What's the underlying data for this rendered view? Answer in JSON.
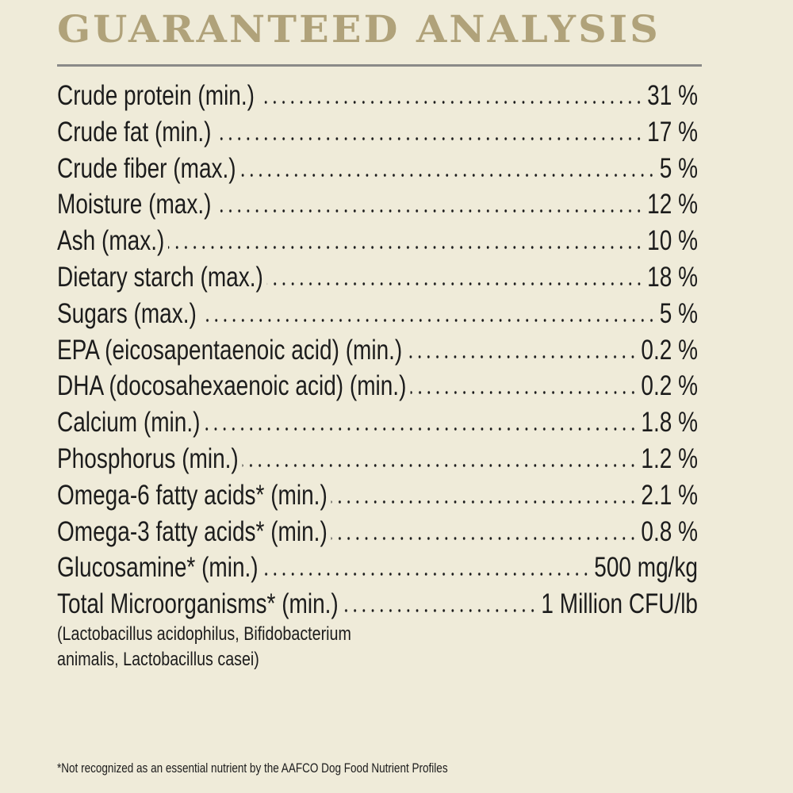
{
  "title": "GUARANTEED ANALYSIS",
  "colors": {
    "title": "#b0a27a",
    "background": "#efebd9",
    "rule": "#8a8a88",
    "text": "#1c1c1c"
  },
  "rows": [
    {
      "label": "Crude protein (min.)",
      "value": "31 %"
    },
    {
      "label": "Crude fat (min.)",
      "value": "17 %"
    },
    {
      "label": "Crude fiber (max.)",
      "value": "5 %"
    },
    {
      "label": "Moisture (max.)",
      "value": "12 %"
    },
    {
      "label": "Ash (max.)",
      "value": "10 %"
    },
    {
      "label": "Dietary starch (max.)",
      "value": "18 %"
    },
    {
      "label": "Sugars (max.)",
      "value": "5 %"
    },
    {
      "label": "EPA (eicosapentaenoic acid) (min.)",
      "value": "0.2 %"
    },
    {
      "label": "DHA (docosahexaenoic acid) (min.)",
      "value": "0.2 %"
    },
    {
      "label": "Calcium (min.)",
      "value": "1.8 %"
    },
    {
      "label": "Phosphorus (min.)",
      "value": "1.2 %"
    },
    {
      "label": "Omega-6 fatty acids* (min.)",
      "value": "2.1 %"
    },
    {
      "label": "Omega-3 fatty acids* (min.)",
      "value": "0.8 %"
    },
    {
      "label": "Glucosamine* (min.)",
      "value": "500 mg/kg"
    },
    {
      "label": "Total Microorganisms* (min.)",
      "value": "1 Million CFU/lb"
    }
  ],
  "microorganisms_note": [
    "(Lactobacillus acidophilus, Bifidobacterium",
    "animalis, Lactobacillus casei)"
  ],
  "footnote": "*Not recognized as an essential nutrient by the AAFCO Dog Food Nutrient Profiles"
}
